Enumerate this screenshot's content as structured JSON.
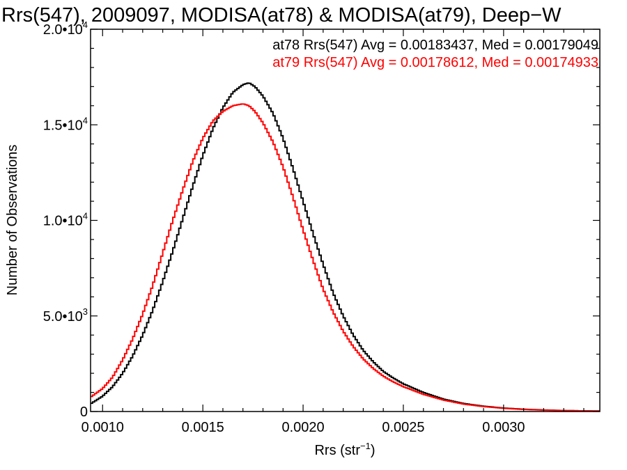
{
  "chart_data": {
    "type": "line",
    "title": "Rrs(547), 2009097, MODISA(at78) & MODISA(at79), Deep−W",
    "xlabel": "Rrs (str",
    "xlabel_exp": "−1",
    "xlabel_close": ")",
    "ylabel": "Number of Observations",
    "xlim": [
      0.00094,
      0.00348
    ],
    "ylim": [
      0,
      20000
    ],
    "grid": false,
    "step_style": true,
    "x_ticks": [
      {
        "value": 0.001,
        "label": "0.0010"
      },
      {
        "value": 0.0015,
        "label": "0.0015"
      },
      {
        "value": 0.002,
        "label": "0.0020"
      },
      {
        "value": 0.0025,
        "label": "0.0025"
      },
      {
        "value": 0.003,
        "label": "0.0030"
      }
    ],
    "y_ticks": [
      {
        "value": 0,
        "mant": "0",
        "exp": ""
      },
      {
        "value": 5000,
        "mant": "5.0•10",
        "exp": "3"
      },
      {
        "value": 10000,
        "mant": "1.0•10",
        "exp": "4"
      },
      {
        "value": 15000,
        "mant": "1.5•10",
        "exp": "4"
      },
      {
        "value": 20000,
        "mant": "2.0•10",
        "exp": "4"
      }
    ],
    "annotations": [
      {
        "text": "at78 Rrs(547) Avg = 0.00183437, Med = 0.00179049",
        "color": "#000000"
      },
      {
        "text": "at79 Rrs(547) Avg = 0.00178612, Med = 0.00174933",
        "color": "#ff0000"
      }
    ],
    "series": [
      {
        "color": "#000000",
        "points": [
          [
            0.00094,
            400
          ],
          [
            0.001,
            800
          ],
          [
            0.00105,
            1300
          ],
          [
            0.0011,
            2000
          ],
          [
            0.00115,
            2900
          ],
          [
            0.0012,
            4000
          ],
          [
            0.00125,
            5300
          ],
          [
            0.0013,
            6800
          ],
          [
            0.00135,
            8400
          ],
          [
            0.0014,
            10100
          ],
          [
            0.00145,
            11800
          ],
          [
            0.0015,
            13400
          ],
          [
            0.00155,
            14800
          ],
          [
            0.0016,
            15900
          ],
          [
            0.00165,
            16700
          ],
          [
            0.0017,
            17100
          ],
          [
            0.00173,
            17200
          ],
          [
            0.00176,
            17000
          ],
          [
            0.0018,
            16500
          ],
          [
            0.00185,
            15600
          ],
          [
            0.0019,
            14300
          ],
          [
            0.00195,
            12700
          ],
          [
            0.002,
            11000
          ],
          [
            0.00205,
            9300
          ],
          [
            0.0021,
            7700
          ],
          [
            0.00215,
            6200
          ],
          [
            0.0022,
            5000
          ],
          [
            0.00225,
            4000
          ],
          [
            0.0023,
            3200
          ],
          [
            0.00235,
            2600
          ],
          [
            0.0024,
            2100
          ],
          [
            0.00245,
            1750
          ],
          [
            0.0025,
            1450
          ],
          [
            0.0026,
            1000
          ],
          [
            0.0027,
            650
          ],
          [
            0.0028,
            420
          ],
          [
            0.0029,
            280
          ],
          [
            0.003,
            180
          ],
          [
            0.0031,
            120
          ],
          [
            0.0032,
            80
          ],
          [
            0.0033,
            50
          ],
          [
            0.0034,
            35
          ],
          [
            0.00348,
            25
          ]
        ]
      },
      {
        "color": "#ff0000",
        "points": [
          [
            0.00094,
            750
          ],
          [
            0.001,
            1200
          ],
          [
            0.00105,
            1800
          ],
          [
            0.0011,
            2700
          ],
          [
            0.00115,
            3800
          ],
          [
            0.0012,
            5100
          ],
          [
            0.00125,
            6600
          ],
          [
            0.0013,
            8300
          ],
          [
            0.00135,
            10000
          ],
          [
            0.0014,
            11600
          ],
          [
            0.00145,
            13100
          ],
          [
            0.0015,
            14300
          ],
          [
            0.00155,
            15200
          ],
          [
            0.0016,
            15700
          ],
          [
            0.00165,
            16000
          ],
          [
            0.0017,
            16100
          ],
          [
            0.00173,
            16000
          ],
          [
            0.00176,
            15700
          ],
          [
            0.0018,
            15100
          ],
          [
            0.00185,
            14100
          ],
          [
            0.0019,
            12800
          ],
          [
            0.00195,
            11200
          ],
          [
            0.002,
            9500
          ],
          [
            0.00205,
            7900
          ],
          [
            0.0021,
            6400
          ],
          [
            0.00215,
            5200
          ],
          [
            0.0022,
            4200
          ],
          [
            0.00225,
            3400
          ],
          [
            0.0023,
            2750
          ],
          [
            0.00235,
            2250
          ],
          [
            0.0024,
            1850
          ],
          [
            0.00245,
            1550
          ],
          [
            0.0025,
            1300
          ],
          [
            0.0026,
            900
          ],
          [
            0.0027,
            600
          ],
          [
            0.0028,
            390
          ],
          [
            0.0029,
            260
          ],
          [
            0.003,
            170
          ],
          [
            0.0031,
            110
          ],
          [
            0.0032,
            75
          ],
          [
            0.0033,
            50
          ],
          [
            0.0034,
            35
          ],
          [
            0.00348,
            25
          ]
        ]
      }
    ]
  }
}
